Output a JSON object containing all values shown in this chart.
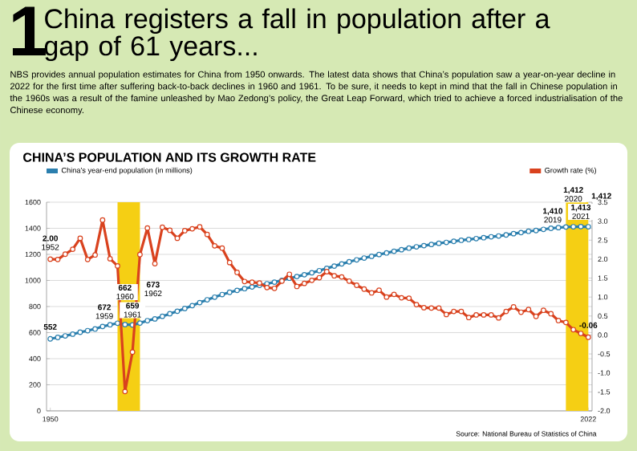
{
  "chart_data": {
    "type": "line",
    "title": "China registers a fall in population after a gap of 61 years...",
    "subtitle": "CHINA’S POPULATION AND ITS GROWTH RATE",
    "annotations": [
      "1",
      "NBS provides annual population estimates for China from 1950 onwards. The latest data shows that China’s population saw a year-on-year decline in 2022 for the first time after suffering back-to-back declines in 1960 and 1961. To be sure, it needs to kept in mind that the fall in Chinese population in the 1960s was a result of the famine unleashed by Mao Zedong’s policy, the Great Leap Forward, which tried to achieve a forced industrialisation of the Chinese economy.",
      "Source: National Bureau of Statistics of China"
    ],
    "x": [
      1950,
      1951,
      1952,
      1953,
      1954,
      1955,
      1956,
      1957,
      1958,
      1959,
      1960,
      1961,
      1962,
      1963,
      1964,
      1965,
      1966,
      1967,
      1968,
      1969,
      1970,
      1971,
      1972,
      1973,
      1974,
      1975,
      1976,
      1977,
      1978,
      1979,
      1980,
      1981,
      1982,
      1983,
      1984,
      1985,
      1986,
      1987,
      1988,
      1989,
      1990,
      1991,
      1992,
      1993,
      1994,
      1995,
      1996,
      1997,
      1998,
      1999,
      2000,
      2001,
      2002,
      2003,
      2004,
      2005,
      2006,
      2007,
      2008,
      2009,
      2010,
      2011,
      2012,
      2013,
      2014,
      2015,
      2016,
      2017,
      2018,
      2019,
      2020,
      2021,
      2022
    ],
    "series": [
      {
        "name": "China’s year-end population (in millions)",
        "color": "#2b7fae",
        "values": [
          552,
          563,
          575,
          588,
          603,
          615,
          628,
          647,
          660,
          672,
          662,
          659,
          673,
          692,
          705,
          725,
          745,
          764,
          785,
          807,
          830,
          852,
          872,
          892,
          909,
          924,
          937,
          950,
          963,
          975,
          987,
          1001,
          1017,
          1030,
          1044,
          1059,
          1075,
          1093,
          1110,
          1127,
          1143,
          1158,
          1172,
          1185,
          1199,
          1211,
          1224,
          1236,
          1248,
          1258,
          1267,
          1276,
          1285,
          1292,
          1300,
          1308,
          1314,
          1321,
          1328,
          1335,
          1341,
          1349,
          1359,
          1367,
          1377,
          1383,
          1392,
          1400,
          1405,
          1410,
          1412,
          1413,
          1412
        ],
        "value_labels": [
          "**552**",
          null,
          null,
          null,
          null,
          null,
          null,
          null,
          null,
          "**672** 1959",
          "**662** 1960",
          "**659** 1961",
          "**673** 1962",
          null,
          null,
          null,
          null,
          null,
          null,
          null,
          null,
          null,
          null,
          null,
          null,
          null,
          null,
          null,
          null,
          null,
          null,
          null,
          null,
          null,
          null,
          null,
          null,
          null,
          null,
          null,
          null,
          null,
          null,
          null,
          null,
          null,
          null,
          null,
          null,
          null,
          null,
          null,
          null,
          null,
          null,
          null,
          null,
          null,
          null,
          null,
          null,
          null,
          null,
          null,
          null,
          null,
          null,
          null,
          null,
          "**1,410** 2019",
          "**1,412** 2020",
          "**1,413** 2021",
          "**1,412**"
        ]
      },
      {
        "name": "Growth rate (%)",
        "color": "#d9421e",
        "axis": "y2",
        "values": [
          2.0,
          1.99,
          2.13,
          2.26,
          2.55,
          1.99,
          2.11,
          3.03,
          2.01,
          1.82,
          -1.49,
          -0.45,
          2.12,
          2.82,
          1.88,
          2.84,
          2.76,
          2.55,
          2.75,
          2.8,
          2.85,
          2.65,
          2.35,
          2.29,
          1.91,
          1.65,
          1.41,
          1.39,
          1.37,
          1.25,
          1.23,
          1.42,
          1.6,
          1.28,
          1.36,
          1.44,
          1.51,
          1.67,
          1.56,
          1.53,
          1.42,
          1.31,
          1.21,
          1.11,
          1.18,
          1.0,
          1.07,
          0.98,
          0.97,
          0.8,
          0.72,
          0.71,
          0.71,
          0.54,
          0.62,
          0.62,
          0.46,
          0.53,
          0.53,
          0.53,
          0.45,
          0.62,
          0.74,
          0.6,
          0.67,
          0.49,
          0.65,
          0.56,
          0.38,
          0.33,
          0.14,
          0.04,
          -0.06
        ],
        "value_labels": [
          "**2.00** 1952",
          null,
          null,
          null,
          null,
          null,
          null,
          null,
          null,
          null,
          null,
          null,
          null,
          null,
          null,
          null,
          null,
          null,
          null,
          null,
          null,
          null,
          null,
          null,
          null,
          null,
          null,
          null,
          null,
          null,
          null,
          null,
          null,
          null,
          null,
          null,
          null,
          null,
          null,
          null,
          null,
          null,
          null,
          null,
          null,
          null,
          null,
          null,
          null,
          null,
          null,
          null,
          null,
          null,
          null,
          null,
          null,
          null,
          null,
          null,
          null,
          null,
          null,
          null,
          null,
          null,
          null,
          null,
          null,
          null,
          null,
          null,
          "**-0.06**"
        ]
      }
    ],
    "xlim": [
      1949.5,
      2022.5
    ],
    "xticks": [
      1950,
      2022
    ],
    "ylim": [
      0,
      1600
    ],
    "yticks": [
      0,
      200,
      400,
      600,
      800,
      1000,
      1200,
      1400,
      1600
    ],
    "y2lim": [
      -2,
      3.5
    ],
    "y2ticks": [
      {
        "value": -2,
        "label": "-2.0"
      },
      -1.5,
      {
        "value": -1,
        "label": "-1.0"
      },
      -0.5,
      {
        "value": 0,
        "label": "0.0"
      },
      0.5,
      {
        "value": 1,
        "label": "1.0"
      },
      1.5,
      {
        "value": 2,
        "label": "2.0"
      },
      2.5,
      {
        "value": 3,
        "label": "3.0"
      },
      3.5
    ],
    "bands": [
      {
        "axis": "x",
        "from": 1959,
        "to": 1962,
        "color": "#f5cf14"
      },
      {
        "axis": "x",
        "from": 2019,
        "to": 2022,
        "color": "#f5cf14"
      }
    ],
    "grid": "y",
    "legend": "top",
    "marker": "circle",
    "line_style": "solid"
  }
}
